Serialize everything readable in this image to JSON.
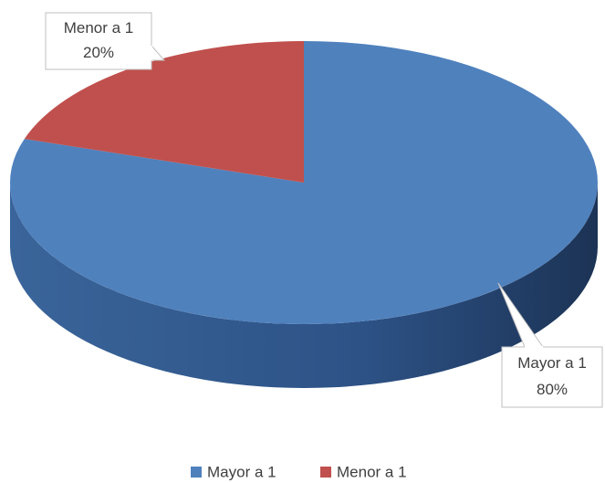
{
  "chart_data": {
    "type": "pie",
    "categories": [
      "Mayor a 1",
      "Menor a 1"
    ],
    "values": [
      80,
      20
    ],
    "value_labels": [
      "80%",
      "20%"
    ],
    "colors": [
      "#4f81bd",
      "#c0504d"
    ],
    "legend": "bottom"
  }
}
